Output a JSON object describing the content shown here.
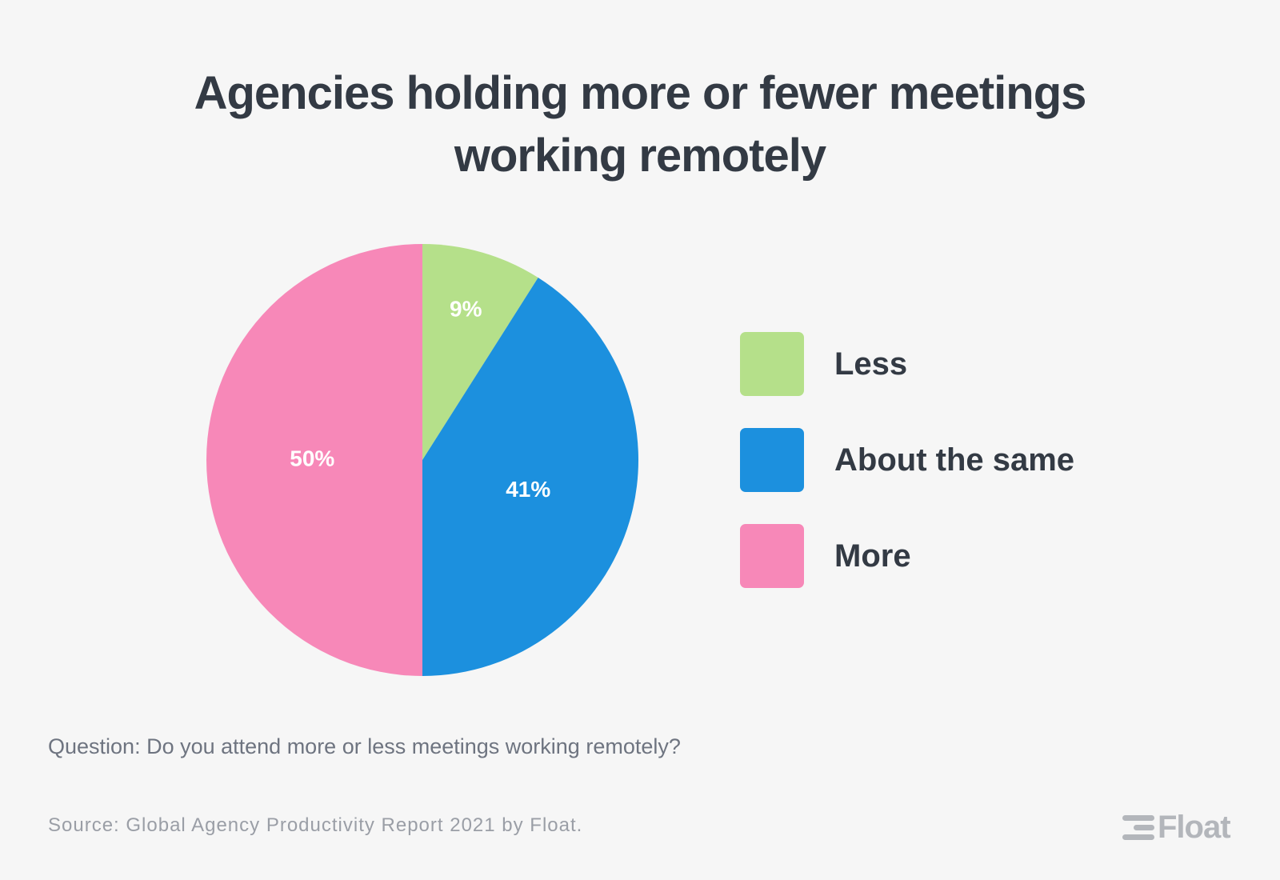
{
  "title": {
    "line1": "Agencies holding more or fewer meetings",
    "line2": "working remotely"
  },
  "chart_data": {
    "type": "pie",
    "title": "Agencies holding more or fewer meetings working remotely",
    "slices": [
      {
        "name": "Less",
        "value": 9,
        "label": "9%",
        "color": "#b5e08a"
      },
      {
        "name": "About the same",
        "value": 41,
        "label": "41%",
        "color": "#1c90de"
      },
      {
        "name": "More",
        "value": 50,
        "label": "50%",
        "color": "#f788b8"
      }
    ],
    "legend_position": "right"
  },
  "question": "Question: Do you attend more or less meetings working remotely?",
  "source": "Source: Global Agency Productivity Report 2021 by Float.",
  "brand": {
    "name": "Float",
    "icon": "float-logo-icon",
    "color": "#b3b6bb"
  },
  "colors": {
    "background": "#f6f6f6",
    "title": "#333a44"
  }
}
